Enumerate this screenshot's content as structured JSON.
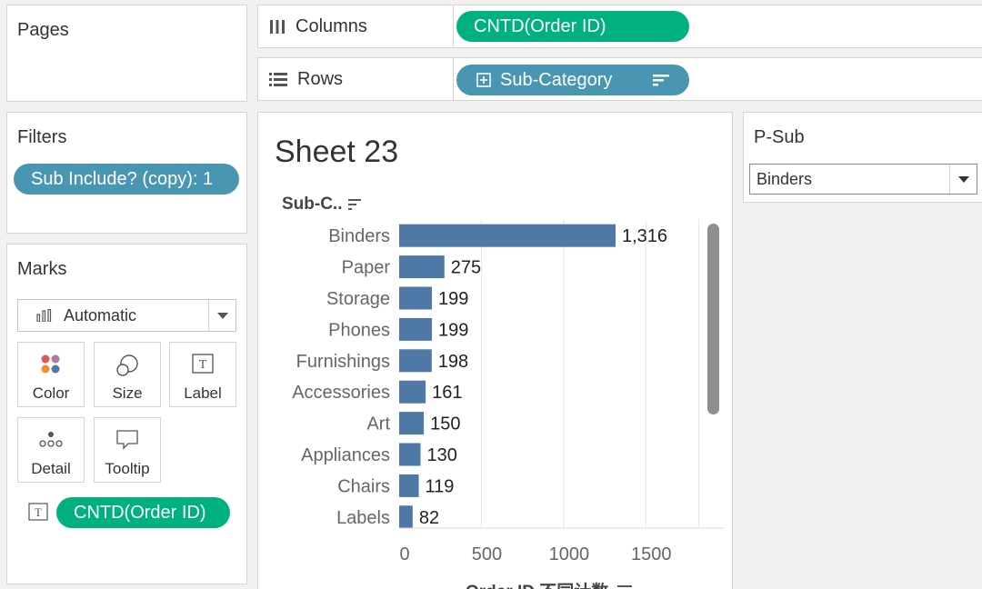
{
  "pages": {
    "title": "Pages"
  },
  "columns": {
    "label": "Columns",
    "pill": "CNTD(Order ID)"
  },
  "rows": {
    "label": "Rows",
    "pill": "Sub-Category"
  },
  "filters": {
    "title": "Filters",
    "pill": "Sub Include? (copy): 1"
  },
  "marks": {
    "title": "Marks",
    "type": "Automatic",
    "buttons": {
      "color": "Color",
      "size": "Size",
      "label": "Label",
      "detail": "Detail",
      "tooltip": "Tooltip"
    },
    "label_pill": "CNTD(Order ID)"
  },
  "sheet": {
    "title": "Sheet 23",
    "row_header": "Sub-C..",
    "x_axis_title": "Order ID 不同计数"
  },
  "param": {
    "title": "P-Sub",
    "value": "Binders"
  },
  "colors": {
    "bar": "#4e79a7",
    "green_pill": "#00b180",
    "blue_pill": "#4996b2"
  },
  "chart_data": {
    "type": "bar",
    "orientation": "horizontal",
    "categories": [
      "Binders",
      "Paper",
      "Storage",
      "Phones",
      "Furnishings",
      "Accessories",
      "Art",
      "Appliances",
      "Chairs",
      "Labels"
    ],
    "values": [
      1316,
      275,
      199,
      199,
      198,
      161,
      150,
      130,
      119,
      82
    ],
    "value_labels": [
      "1,316",
      "275",
      "199",
      "199",
      "198",
      "161",
      "150",
      "130",
      "119",
      "82"
    ],
    "x_ticks": [
      0,
      500,
      1000,
      1500
    ],
    "xlim": [
      0,
      1800
    ],
    "xlabel": "Order ID 不同计数",
    "ylabel": "Sub-C..",
    "title": "Sheet 23",
    "grid": true
  }
}
